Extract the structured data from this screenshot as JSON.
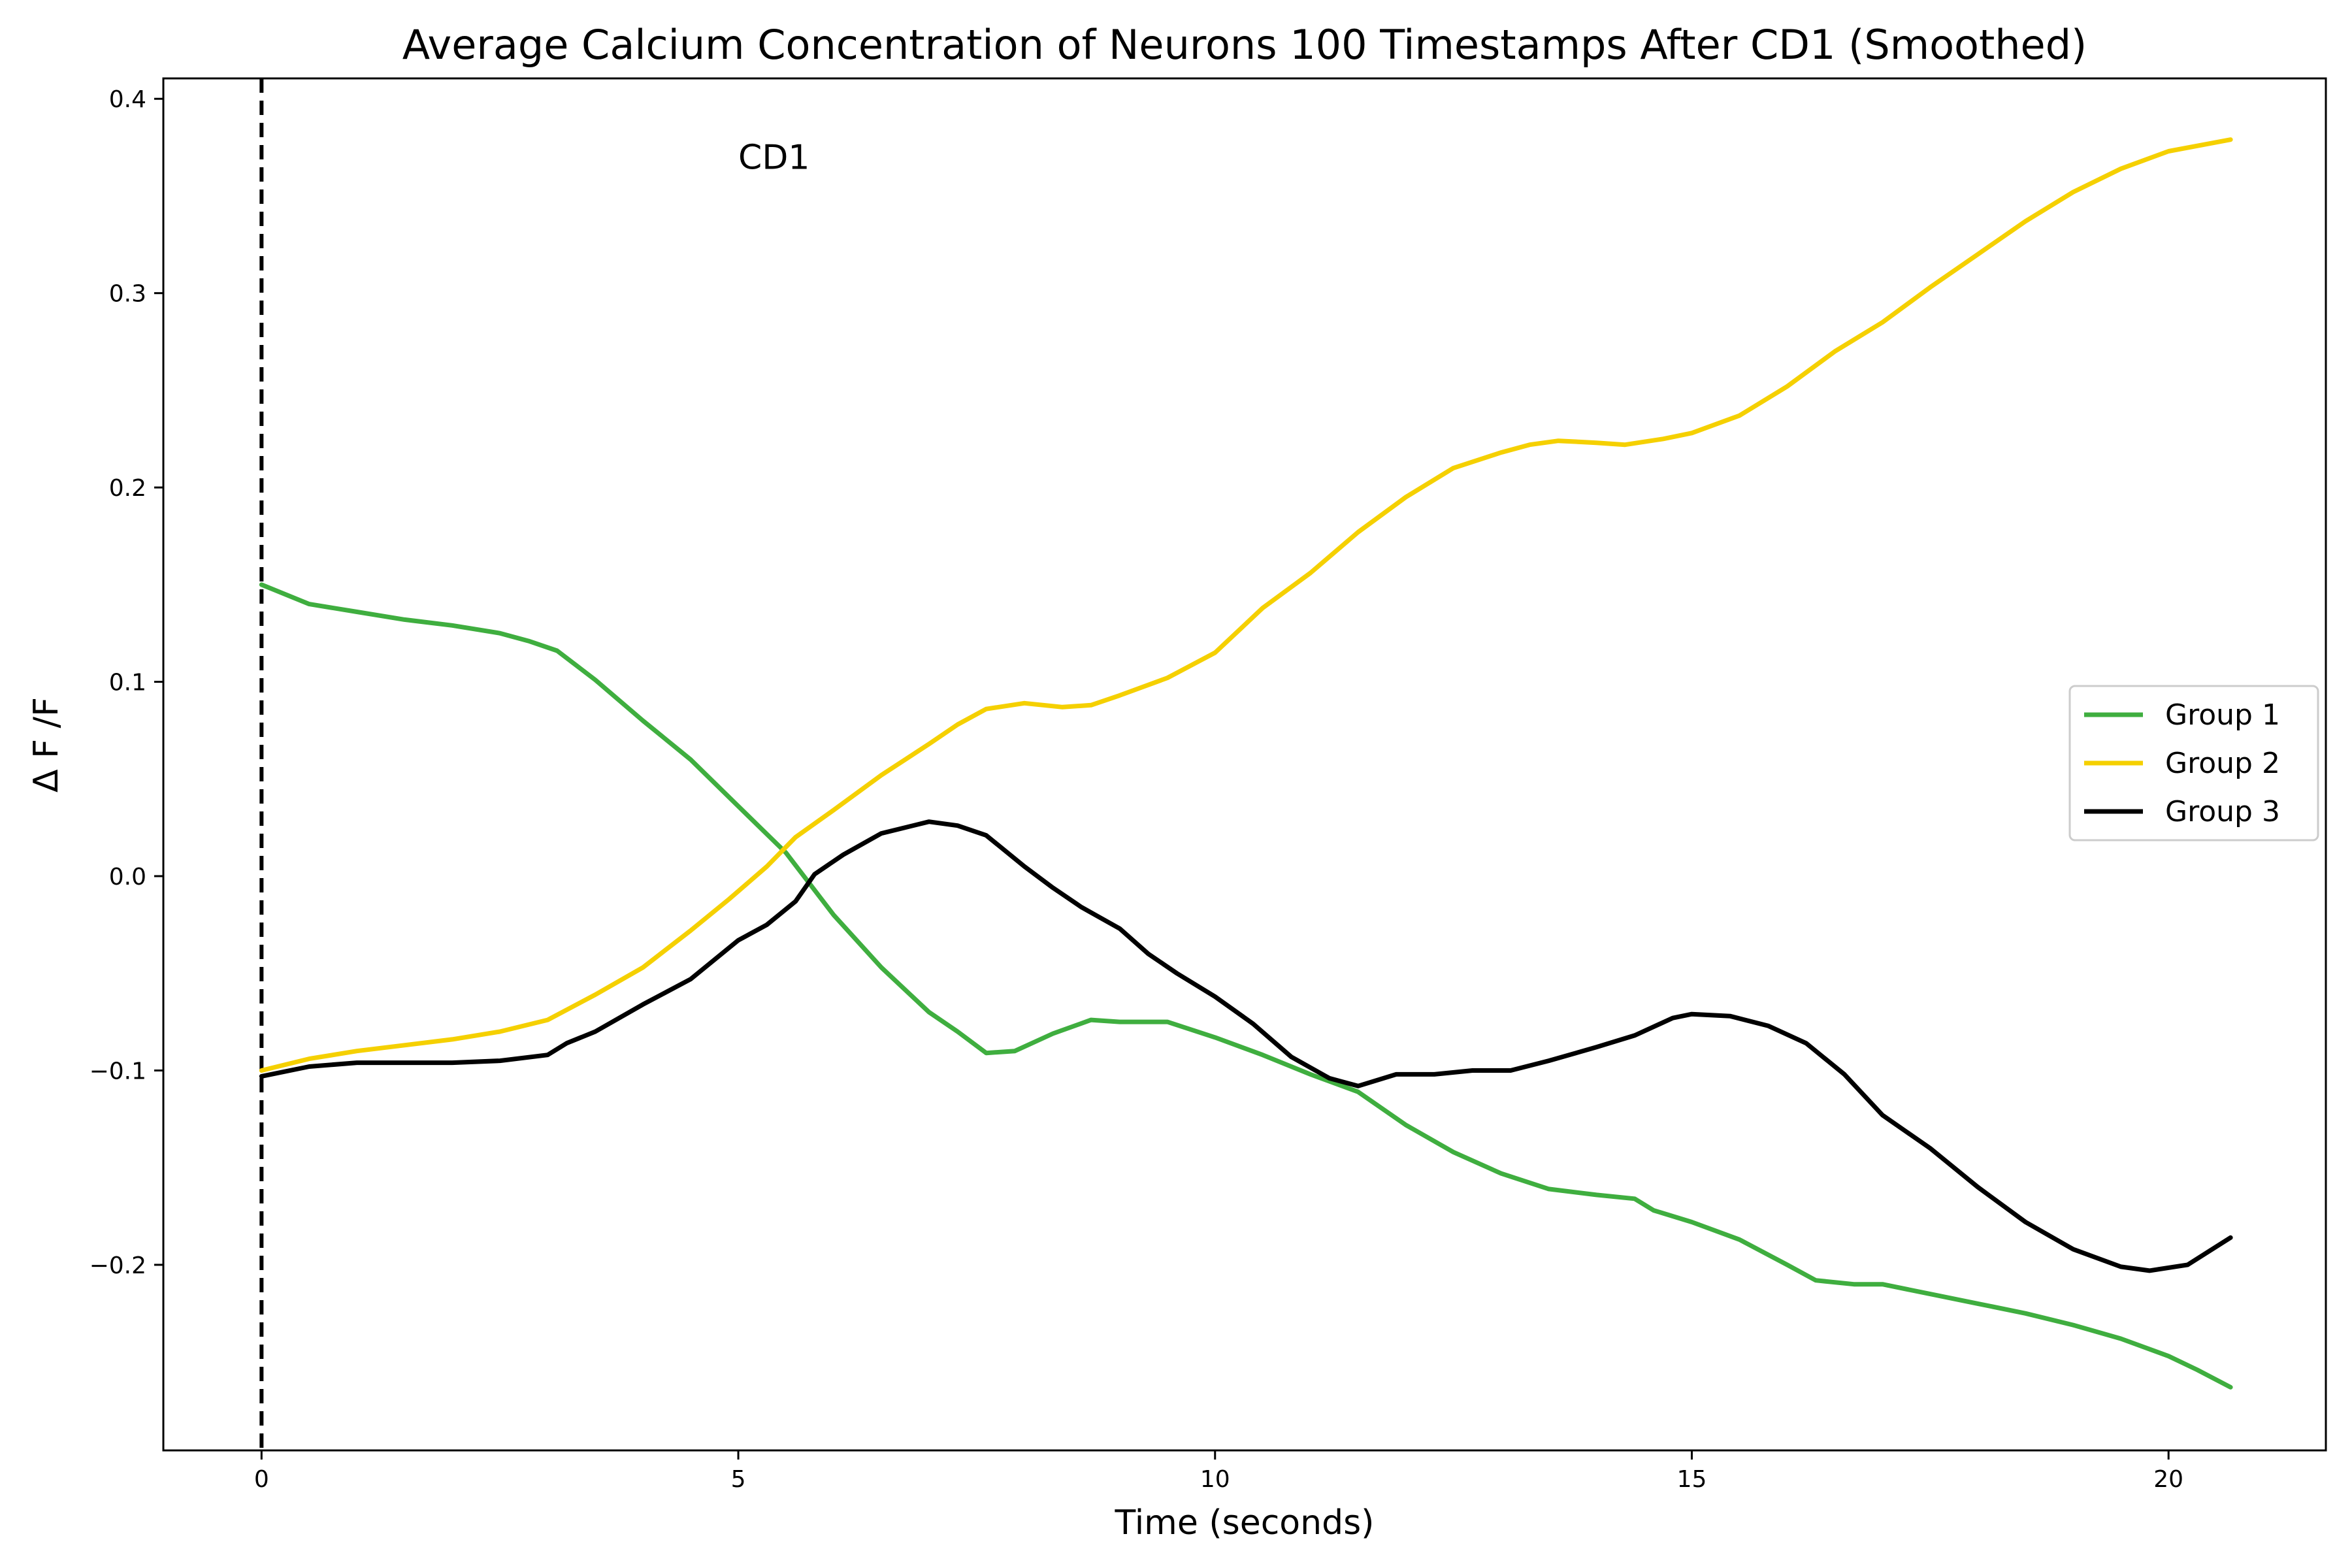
{
  "chart_data": {
    "type": "line",
    "title": "Average Calcium Concentration of Neurons 100 Timestamps After CD1 (Smoothed)",
    "xlabel": "Time (seconds)",
    "ylabel": "Δ F /F",
    "xlim": [
      -1.03,
      21.65
    ],
    "ylim": [
      -0.2955,
      0.4105
    ],
    "xticks": [
      0,
      5,
      10,
      15,
      20
    ],
    "yticks": [
      -0.2,
      -0.1,
      0.0,
      0.1,
      0.2,
      0.3,
      0.4
    ],
    "xtick_labels": [
      "0",
      "5",
      "10",
      "15",
      "20"
    ],
    "ytick_labels": [
      "−0.2",
      "−0.1",
      "0.0",
      "0.1",
      "0.2",
      "0.3",
      "0.4"
    ],
    "grid": false,
    "legend": "center-right",
    "vline": {
      "x": 0,
      "style": "dashed",
      "color": "#000000"
    },
    "annotation": {
      "text": "CD1",
      "x": 5.0,
      "y": 0.37
    },
    "series": [
      {
        "name": "Group 1",
        "color": "#3fae3f",
        "x": [
          0,
          0.5,
          1,
          1.5,
          2,
          2.5,
          2.8,
          3.1,
          3.5,
          4,
          4.5,
          5,
          5.5,
          6,
          6.5,
          7,
          7.3,
          7.6,
          7.9,
          8.3,
          8.7,
          9,
          9.5,
          10,
          10.5,
          11,
          11.5,
          12,
          12.5,
          13,
          13.5,
          14,
          14.4,
          14.6,
          15,
          15.5,
          16,
          16.3,
          16.7,
          17,
          17.5,
          18,
          18.5,
          19,
          19.5,
          20,
          20.3,
          20.65
        ],
        "values": [
          0.15,
          0.14,
          0.136,
          0.132,
          0.129,
          0.125,
          0.121,
          0.116,
          0.101,
          0.08,
          0.06,
          0.036,
          0.012,
          -0.02,
          -0.047,
          -0.07,
          -0.08,
          -0.091,
          -0.09,
          -0.081,
          -0.074,
          -0.075,
          -0.075,
          -0.083,
          -0.092,
          -0.102,
          -0.111,
          -0.128,
          -0.142,
          -0.153,
          -0.161,
          -0.164,
          -0.166,
          -0.172,
          -0.178,
          -0.187,
          -0.2,
          -0.208,
          -0.21,
          -0.21,
          -0.215,
          -0.22,
          -0.225,
          -0.231,
          -0.238,
          -0.247,
          -0.254,
          -0.263
        ]
      },
      {
        "name": "Group 2",
        "color": "#f5d000",
        "x": [
          0,
          0.5,
          1,
          1.5,
          2,
          2.5,
          3,
          3.5,
          4,
          4.5,
          4.9,
          5.3,
          5.6,
          6,
          6.5,
          7,
          7.3,
          7.6,
          8,
          8.4,
          8.7,
          9,
          9.5,
          10,
          10.5,
          11,
          11.5,
          12,
          12.5,
          13,
          13.3,
          13.6,
          14,
          14.3,
          14.7,
          15,
          15.5,
          16,
          16.5,
          17,
          17.5,
          18,
          18.5,
          19,
          19.5,
          20,
          20.65
        ],
        "values": [
          -0.1,
          -0.094,
          -0.09,
          -0.087,
          -0.084,
          -0.08,
          -0.074,
          -0.061,
          -0.047,
          -0.028,
          -0.012,
          0.005,
          0.02,
          0.034,
          0.052,
          0.068,
          0.078,
          0.086,
          0.089,
          0.087,
          0.088,
          0.093,
          0.102,
          0.115,
          0.138,
          0.156,
          0.177,
          0.195,
          0.21,
          0.218,
          0.222,
          0.224,
          0.223,
          0.222,
          0.225,
          0.228,
          0.237,
          0.252,
          0.27,
          0.285,
          0.303,
          0.32,
          0.337,
          0.352,
          0.364,
          0.373,
          0.379
        ]
      },
      {
        "name": "Group 3",
        "color": "#000000",
        "x": [
          0,
          0.5,
          1,
          1.5,
          2,
          2.5,
          3,
          3.2,
          3.5,
          4,
          4.5,
          5,
          5.3,
          5.6,
          5.8,
          6.1,
          6.5,
          7,
          7.3,
          7.6,
          8,
          8.3,
          8.6,
          9,
          9.3,
          9.6,
          10,
          10.4,
          10.8,
          11.2,
          11.5,
          11.9,
          12.3,
          12.7,
          13.1,
          13.5,
          14,
          14.4,
          14.8,
          15,
          15.4,
          15.8,
          16.2,
          16.6,
          17,
          17.5,
          18,
          18.5,
          19,
          19.5,
          19.8,
          20.2,
          20.65
        ],
        "values": [
          -0.103,
          -0.098,
          -0.096,
          -0.096,
          -0.096,
          -0.095,
          -0.092,
          -0.086,
          -0.08,
          -0.066,
          -0.053,
          -0.033,
          -0.025,
          -0.013,
          0.001,
          0.011,
          0.022,
          0.028,
          0.026,
          0.021,
          0.005,
          -0.006,
          -0.016,
          -0.027,
          -0.04,
          -0.05,
          -0.062,
          -0.076,
          -0.093,
          -0.104,
          -0.108,
          -0.102,
          -0.102,
          -0.1,
          -0.1,
          -0.095,
          -0.088,
          -0.082,
          -0.073,
          -0.071,
          -0.072,
          -0.077,
          -0.086,
          -0.102,
          -0.123,
          -0.14,
          -0.16,
          -0.178,
          -0.192,
          -0.201,
          -0.203,
          -0.2,
          -0.186
        ]
      }
    ]
  }
}
